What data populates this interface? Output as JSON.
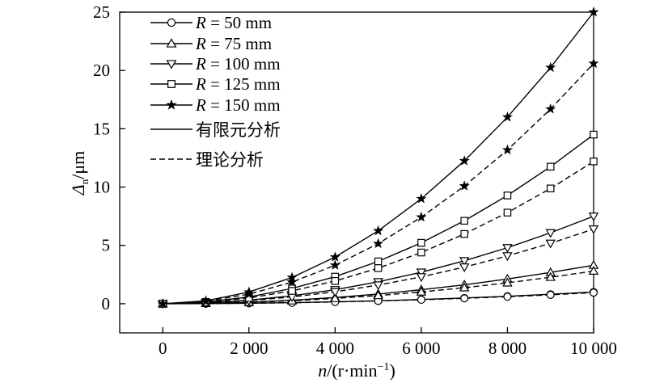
{
  "chart_data": {
    "type": "line",
    "xlabel": "n/(r·min⁻¹)",
    "ylabel": "Δn/μm",
    "xlim": [
      -1000,
      10000
    ],
    "ylim": [
      -2.5,
      25
    ],
    "x_ticks": [
      0,
      2000,
      4000,
      6000,
      8000,
      10000
    ],
    "x_tick_labels": [
      "0",
      "2 000",
      "4 000",
      "6 000",
      "8 000",
      "10 000"
    ],
    "y_ticks": [
      0,
      5,
      10,
      15,
      20,
      25
    ],
    "y_tick_labels": [
      "0",
      "5",
      "10",
      "15",
      "20",
      "25"
    ],
    "x": [
      0,
      1000,
      2000,
      3000,
      4000,
      5000,
      6000,
      7000,
      8000,
      9000,
      10000
    ],
    "legend_position": "top-left",
    "series": [
      {
        "name": "R = 50 mm",
        "method": "fem",
        "marker": "circle",
        "values": [
          0,
          0.01,
          0.04,
          0.09,
          0.16,
          0.25,
          0.36,
          0.49,
          0.64,
          0.81,
          1.0
        ]
      },
      {
        "name": "R = 50 mm",
        "method": "theory",
        "marker": "circle",
        "values": [
          0,
          0.01,
          0.04,
          0.08,
          0.15,
          0.24,
          0.34,
          0.46,
          0.6,
          0.76,
          0.95
        ]
      },
      {
        "name": "R = 75 mm",
        "method": "fem",
        "marker": "triangle-up",
        "values": [
          0,
          0.03,
          0.13,
          0.3,
          0.53,
          0.83,
          1.2,
          1.62,
          2.12,
          2.68,
          3.3
        ]
      },
      {
        "name": "R = 75 mm",
        "method": "theory",
        "marker": "triangle-up",
        "values": [
          0,
          0.03,
          0.11,
          0.25,
          0.45,
          0.7,
          1.01,
          1.37,
          1.79,
          2.27,
          2.8
        ]
      },
      {
        "name": "R = 100 mm",
        "method": "fem",
        "marker": "triangle-down",
        "values": [
          0,
          0.08,
          0.3,
          0.68,
          1.2,
          1.88,
          2.7,
          3.68,
          4.8,
          6.08,
          7.5
        ]
      },
      {
        "name": "R = 100 mm",
        "method": "theory",
        "marker": "triangle-down",
        "values": [
          0,
          0.06,
          0.26,
          0.58,
          1.02,
          1.6,
          2.3,
          3.14,
          4.1,
          5.18,
          6.4
        ]
      },
      {
        "name": "R = 125 mm",
        "method": "fem",
        "marker": "square",
        "values": [
          0,
          0.15,
          0.58,
          1.31,
          2.32,
          3.63,
          5.22,
          7.11,
          9.28,
          11.75,
          14.5
        ]
      },
      {
        "name": "R = 125 mm",
        "method": "theory",
        "marker": "square",
        "values": [
          0,
          0.12,
          0.49,
          1.1,
          1.95,
          3.05,
          4.39,
          5.98,
          7.81,
          9.88,
          12.2
        ]
      },
      {
        "name": "R = 150 mm",
        "method": "fem",
        "marker": "star",
        "values": [
          0,
          0.25,
          1.0,
          2.25,
          4.0,
          6.25,
          9.0,
          12.25,
          16.0,
          20.25,
          25.0
        ]
      },
      {
        "name": "R = 150 mm",
        "method": "theory",
        "marker": "star",
        "values": [
          0,
          0.21,
          0.82,
          1.85,
          3.3,
          5.15,
          7.42,
          10.09,
          13.18,
          16.69,
          20.6
        ]
      }
    ],
    "legend": {
      "markers": [
        {
          "label": "R = 50 mm",
          "marker": "circle"
        },
        {
          "label": "R = 75 mm",
          "marker": "triangle-up"
        },
        {
          "label": "R = 100 mm",
          "marker": "triangle-down"
        },
        {
          "label": "R = 125 mm",
          "marker": "square"
        },
        {
          "label": "R = 150 mm",
          "marker": "star"
        }
      ],
      "lines": [
        {
          "label": "有限元分析",
          "style": "solid"
        },
        {
          "label": "理论分析",
          "style": "dashed"
        }
      ]
    }
  }
}
